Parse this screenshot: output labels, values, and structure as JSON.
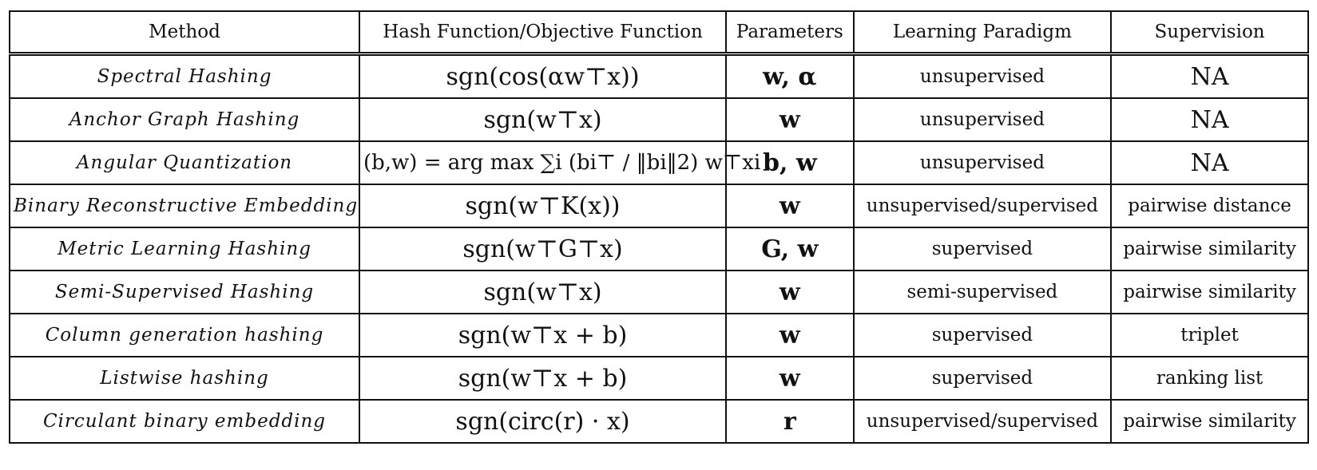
{
  "headers": [
    "Method",
    "Hash Function/Objective Function",
    "Parameters",
    "Learning Paradigm",
    "Supervision"
  ],
  "rows": [
    {
      "method": "Spectral Hashing",
      "formula": "sgn(cos(αw⊤x))",
      "params": "w, α",
      "paradigm": "unsupervised",
      "supervision": "NA"
    },
    {
      "method": "Anchor Graph Hashing",
      "formula": "sgn(w⊤x)",
      "params": "w",
      "paradigm": "unsupervised",
      "supervision": "NA"
    },
    {
      "method": "Angular Quantization",
      "formula": "(b,w) = arg max ∑i (bi⊤ / ‖bi‖2) w⊤xi",
      "params": "b, w",
      "paradigm": "unsupervised",
      "supervision": "NA"
    },
    {
      "method": "Binary Reconstructive Embedding",
      "formula": "sgn(w⊤K(x))",
      "params": "w",
      "paradigm": "unsupervised/supervised",
      "supervision": "pairwise distance"
    },
    {
      "method": "Metric Learning Hashing",
      "formula": "sgn(w⊤G⊤x)",
      "params": "G, w",
      "paradigm": "supervised",
      "supervision": "pairwise similarity"
    },
    {
      "method": "Semi-Supervised Hashing",
      "formula": "sgn(w⊤x)",
      "params": "w",
      "paradigm": "semi-supervised",
      "supervision": "pairwise similarity"
    },
    {
      "method": "Column generation hashing",
      "formula": "sgn(w⊤x + b)",
      "params": "w",
      "paradigm": "supervised",
      "supervision": "triplet"
    },
    {
      "method": "Listwise hashing",
      "formula": "sgn(w⊤x + b)",
      "params": "w",
      "paradigm": "supervised",
      "supervision": "ranking list"
    },
    {
      "method": "Circulant binary embedding",
      "formula": "sgn(circ(r) · x)",
      "params": "r",
      "paradigm": "unsupervised/supervised",
      "supervision": "pairwise similarity"
    }
  ]
}
